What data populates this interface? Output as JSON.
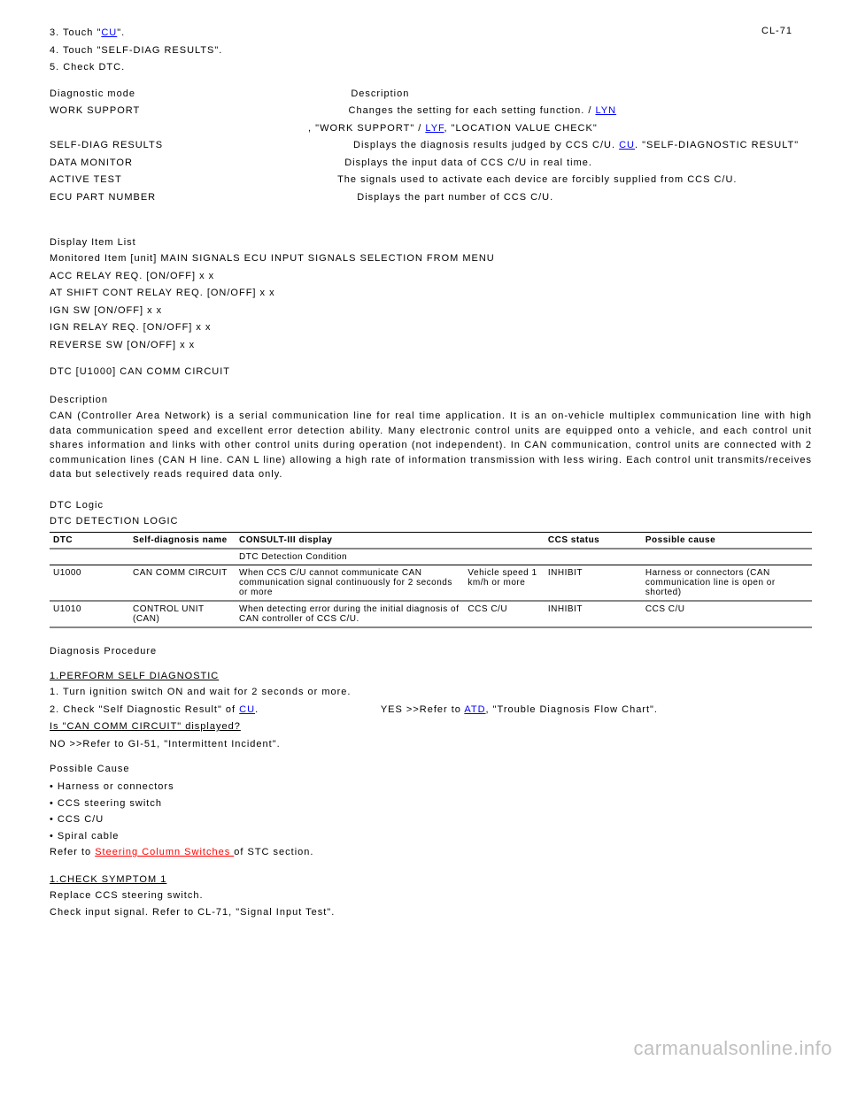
{
  "page_number": "CL-71",
  "block1": {
    "p1_before": "3. Touch \"",
    "p1_link": "CU",
    "p1_after": "\".",
    "p2": "4. Touch \"SELF-DIAG RESULTS\".",
    "p3": "5. Check DTC.",
    "diagnostic_label": "Diagnostic mode",
    "diagnostic_desc": "Description",
    "work_label": "WORK SUPPORT",
    "work_desc_a": "Changes the setting for each setting function. / ",
    "work_link_a": "LYN",
    "work_desc_b": ", \"WORK SUPPORT\" / ",
    "work_link_b": "LYF",
    "work_desc_c": ", \"LOCATION VALUE CHECK\"",
    "self_label": "SELF-DIAG RESULTS",
    "self_desc_pre": "Displays the diagnosis results judged by CCS C/U. ",
    "self_link": "CU",
    "self_desc_post": ". \"SELF-DIAGNOSTIC RESULT\"",
    "data_label": "DATA MONITOR",
    "data_desc": "Displays the input data of CCS C/U in real time.",
    "active_label": "ACTIVE TEST",
    "active_desc": "The signals used to activate each device are forcibly supplied from CCS C/U.",
    "ecu_label": "ECU PART NUMBER",
    "ecu_desc": "Displays the part number of CCS C/U."
  },
  "listing": {
    "title": "Display Item List",
    "l1": "Monitored Item [unit]                                  MAIN SIGNALS       ECU INPUT SIGNALS     SELECTION FROM MENU",
    "l2": "ACC RELAY REQ. [ON/OFF]                                  x                                       x",
    "l3": "AT SHIFT CONT RELAY REQ. [ON/OFF]                        x                                       x",
    "l4": "IGN SW [ON/OFF]                                                            x                     x",
    "l5": "IGN RELAY REQ. [ON/OFF]                                  x                                       x",
    "l6": "REVERSE SW [ON/OFF]                                                        x                     x"
  },
  "dtc_section": {
    "header": "DTC [U1000] CAN COMM CIRCUIT",
    "desc_label": "Description",
    "desc_p1": "CAN (Controller Area Network) is a serial communication line for real time application. It is an on-vehicle multiplex communication line with high data communication speed and excellent error detection ability. Many electronic control units are equipped onto a vehicle, and each control unit shares information and links with other control units during operation (not independent). In CAN communication, control units are connected with 2 communication lines (CAN H line. CAN L line) allowing a high rate of information transmission with less wiring. Each control unit transmits/receives data but selectively reads required data only.",
    "logic_label": "DTC Logic",
    "logic_sub": "DTC DETECTION LOGIC"
  },
  "dtc_table": {
    "headers": [
      "CONSULT-III display",
      "DTC Detection Condition",
      "CCS status",
      "Possible cause"
    ],
    "r1": [
      "DTC",
      "Self-diagnosis name",
      "",
      "",
      "",
      ""
    ],
    "r2": [
      "U1000",
      "CAN COMM CIRCUIT",
      "When CCS C/U cannot communicate CAN communication signal continuously for 2 seconds or more",
      "Vehicle speed 1 km/h or more",
      "INHIBIT",
      "Harness or connectors (CAN communication line is open or shorted)"
    ],
    "r3": [
      "U1010",
      "CONTROL UNIT (CAN)",
      "When detecting error during the initial diagnosis of CAN controller of CCS C/U.",
      "CCS C/U",
      "INHIBIT",
      "CCS C/U"
    ]
  },
  "proc": {
    "label": "Diagnosis Procedure",
    "step": "1.PERFORM SELF DIAGNOSTIC",
    "p1": "1. Turn ignition switch ON and wait for 2 seconds or more.",
    "p2_pre": "2. Check \"Self Diagnostic Result\" of ",
    "p2_link": "CU",
    "p2_post": ".",
    "q1": "Is \"CAN COMM CIRCUIT\" displayed?",
    "yes_pre": "YES  >>Refer to ",
    "yes_link": "ATD",
    "yes_post": ", \"Trouble Diagnosis Flow Chart\".",
    "no": "NO  >>Refer to GI-51, \"Intermittent Incident\"."
  },
  "causes": {
    "label": "Possible Cause",
    "c1": "• Harness or connectors",
    "c2": "• CCS steering switch",
    "c3": "• CCS C/U",
    "c4": "• Spiral cable",
    "c5_pre": "Refer to ",
    "c5_link": "Steering Column Switches ",
    "c5_post": "of STC section."
  },
  "action": {
    "label": "1.CHECK SYMPTOM 1",
    "p1": "Replace CCS steering switch.",
    "p2": "Check input signal. Refer to CL-71, \"Signal Input Test\"."
  },
  "watermark": "carmanualsonline.info"
}
